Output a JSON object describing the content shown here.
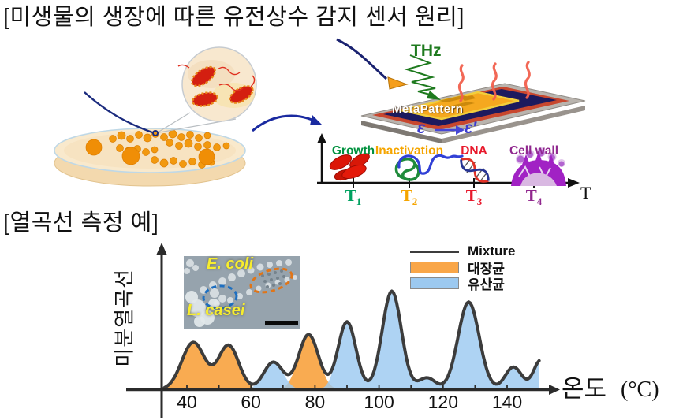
{
  "page": {
    "title": "[미생물의 생장에 따른 유전상수 감지 센서 원리]",
    "thermal_section_label": "[열곡선 측정 예]"
  },
  "sensor": {
    "thz_label": "THz",
    "chip_label": "MetaPattern",
    "epsilon_before": "ε",
    "epsilon_after": "ε′",
    "colors": {
      "thz_green": "#1E7A1E",
      "epsilon_blue": "#3A3ACF",
      "chip_navy": "#1C1A5E",
      "chip_orange": "#F5A81F",
      "chip_red": "#C8472E",
      "heat_red": "#F2604D"
    }
  },
  "timeline": {
    "axis_end_label": "T",
    "stages": [
      {
        "label": "Growth",
        "tick": "T",
        "sub": "1",
        "color": "#00913E",
        "tick_color": "#00A160"
      },
      {
        "label": "Inactivation",
        "tick": "T",
        "sub": "2",
        "color": "#F5A500",
        "tick_color": "#F5A500"
      },
      {
        "label": "DNA",
        "tick": "T",
        "sub": "3",
        "color": "#E8192C",
        "tick_color": "#E8192C"
      },
      {
        "label": "Cell wall",
        "tick": "T",
        "sub": "4",
        "color": "#90278E",
        "tick_color": "#90278E"
      }
    ]
  },
  "chart": {
    "legend": [
      {
        "label": "Mixture",
        "swatch": "line",
        "color": "#3C3C3C"
      },
      {
        "label": "대장균",
        "swatch": "box",
        "color": "#F9A648"
      },
      {
        "label": "유산균",
        "swatch": "box",
        "color": "#9CC9F0"
      }
    ],
    "inset": {
      "label_top": "E. coli",
      "label_bottom": "L. casei"
    },
    "xlabel_main": "온도",
    "xlabel_unit": "(°C)",
    "ylabel": "미분열곡선"
  },
  "chart_data": {
    "type": "area",
    "title": "",
    "xlabel": "온도 (°C)",
    "ylabel": "미분열곡선",
    "xlim": [
      33,
      150
    ],
    "ylim": [
      0,
      1.05
    ],
    "x_ticks": [
      40,
      60,
      80,
      100,
      120,
      140
    ],
    "grid": false,
    "legend_position": "top-right",
    "y_axis_note": "relative differential thermal signal, 0-1 (unlabeled axis)",
    "series": [
      {
        "name": "대장균",
        "alias": "E. coli",
        "style": "filled-area",
        "color": "#F9A648",
        "peaks_tempC_height_sigma": [
          [
            42,
            0.48,
            3.6
          ],
          [
            53,
            0.45,
            3.2
          ],
          [
            78,
            0.56,
            3.1
          ]
        ]
      },
      {
        "name": "유산균",
        "alias": "L. casei",
        "style": "filled-area",
        "color": "#9CC9F0",
        "peaks_tempC_height_sigma": [
          [
            67,
            0.28,
            3.0
          ],
          [
            90,
            0.69,
            2.8
          ],
          [
            104,
            1.0,
            3.0
          ],
          [
            115,
            0.12,
            2.6
          ],
          [
            128,
            0.89,
            3.3
          ],
          [
            142,
            0.23,
            2.6
          ],
          [
            150.5,
            0.3,
            2.2
          ]
        ]
      },
      {
        "name": "Mixture",
        "style": "line",
        "color": "#3C3C3C",
        "derived": "sum of the two species curves"
      }
    ]
  }
}
